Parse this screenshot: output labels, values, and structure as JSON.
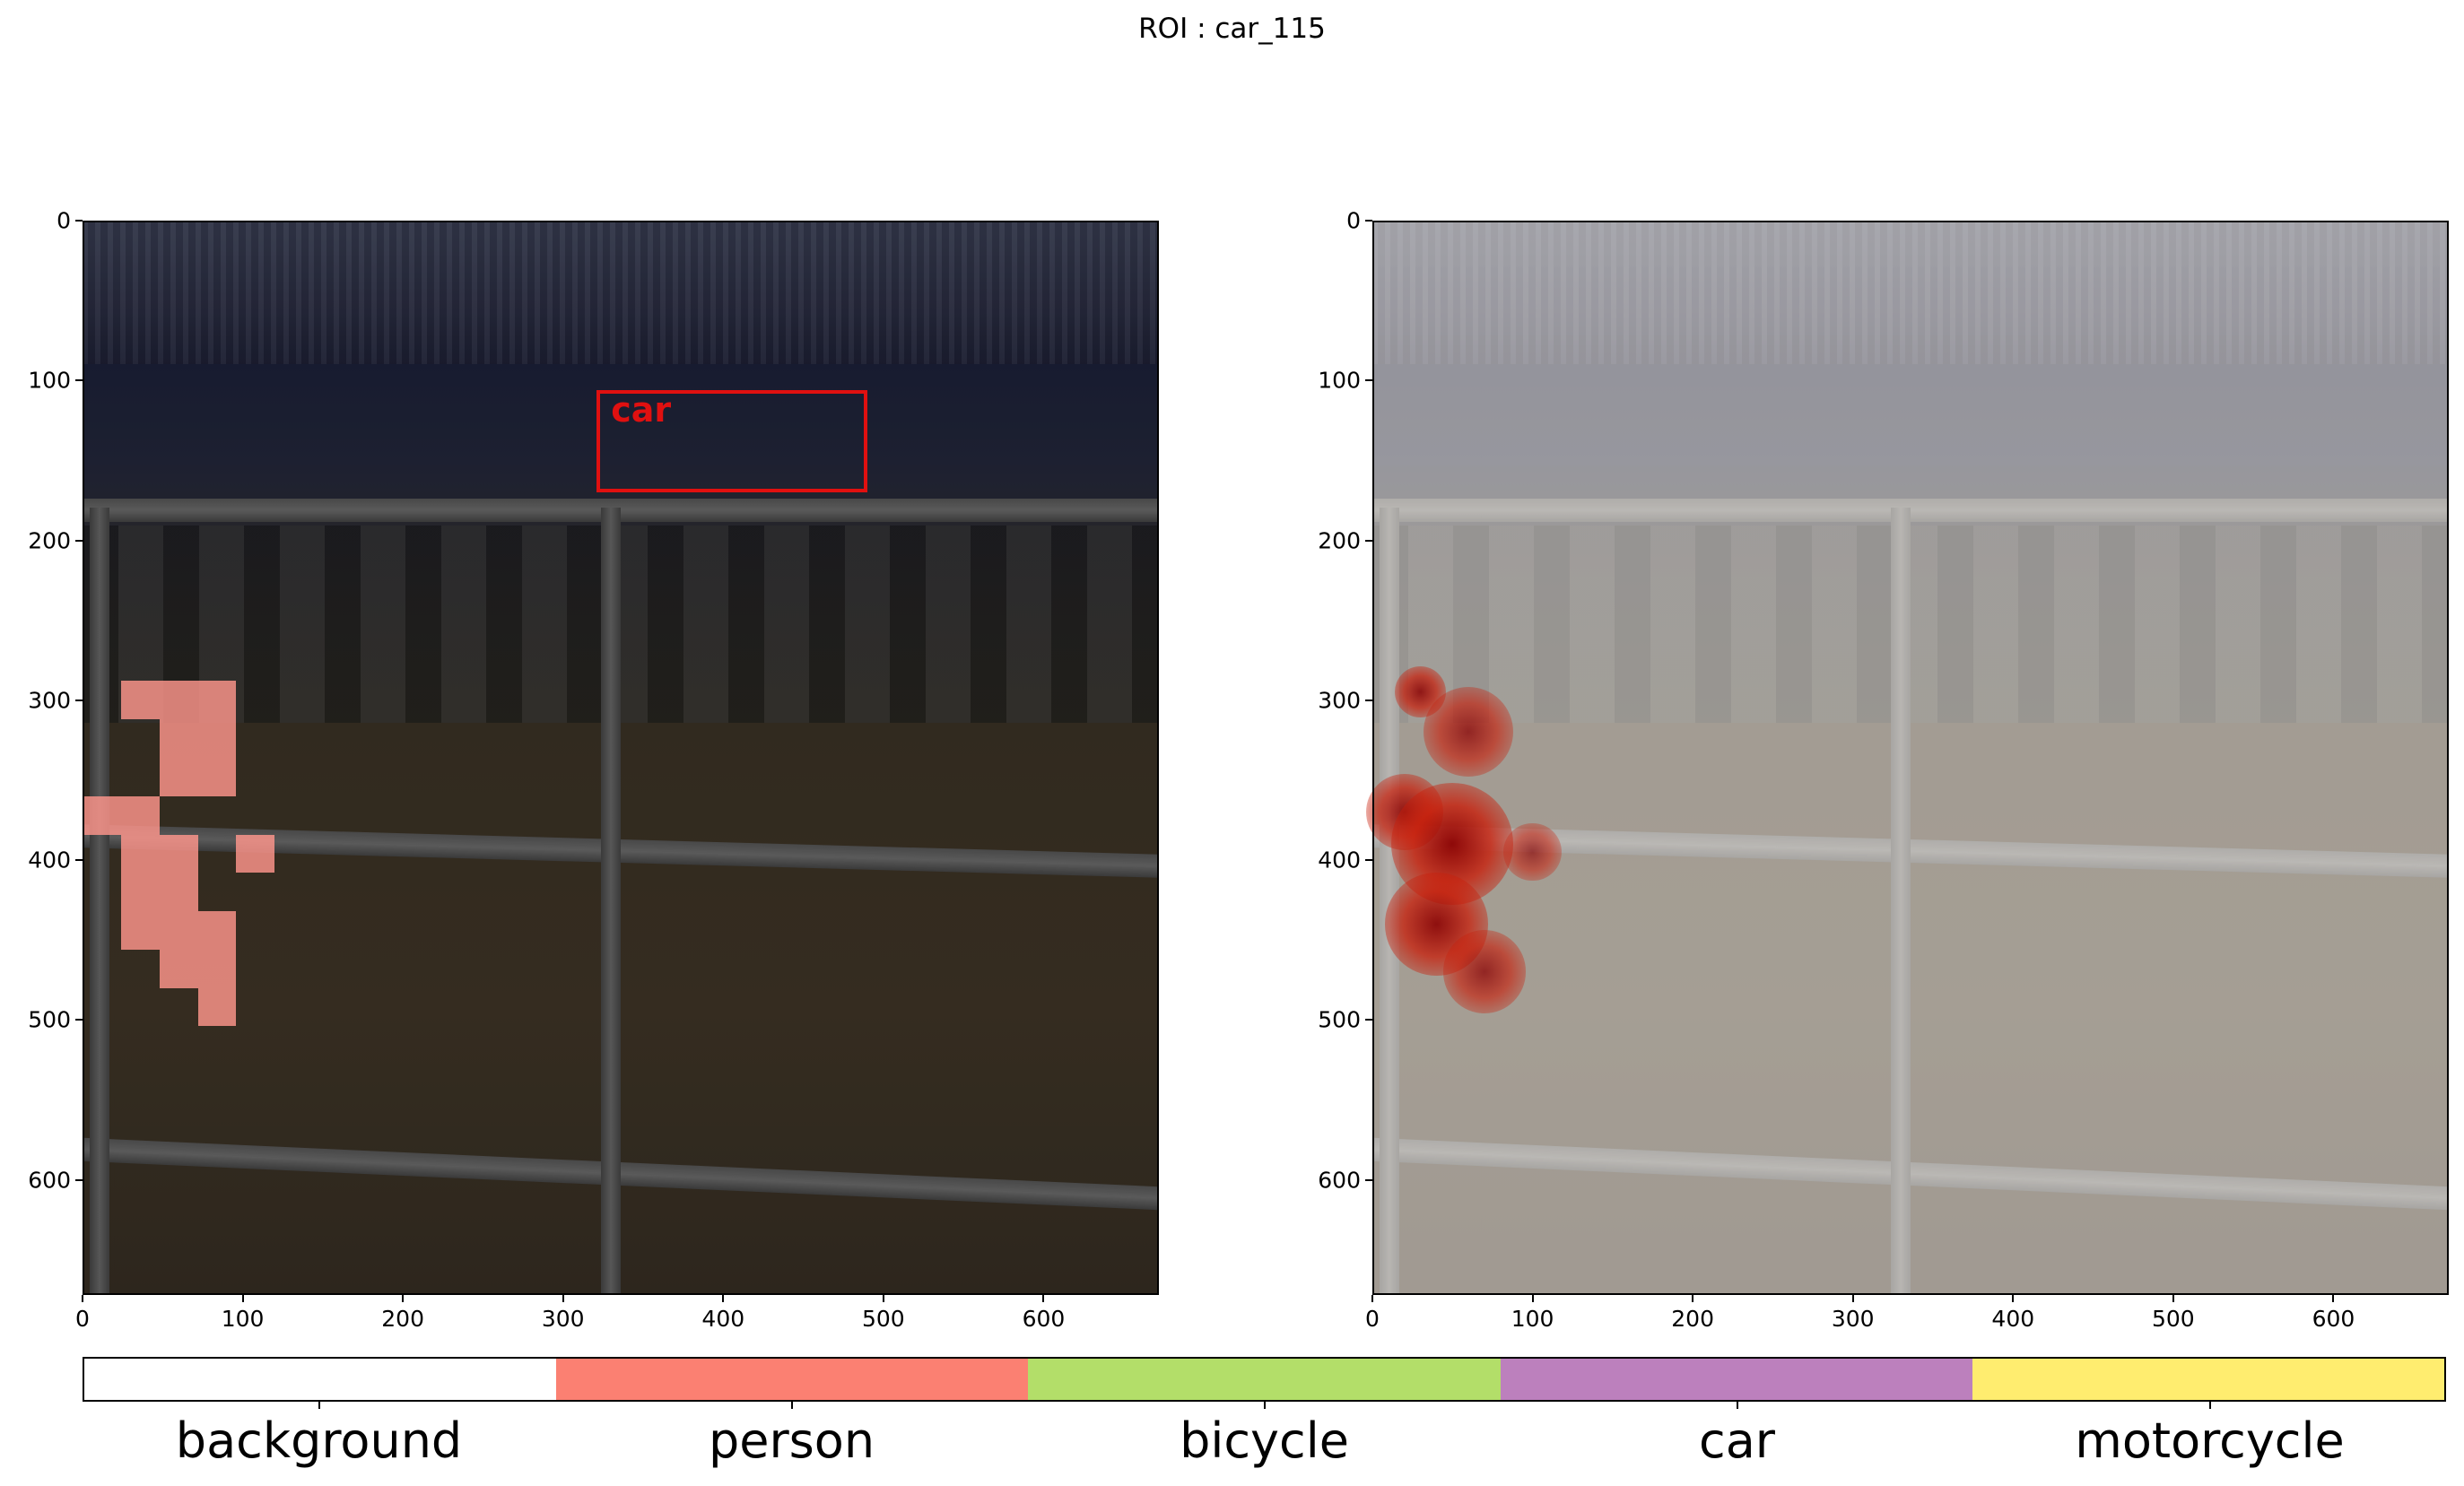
{
  "title": "ROI : car_115",
  "chart_data": [
    {
      "type": "image",
      "panel": "left",
      "xlim": [
        0,
        672
      ],
      "ylim": [
        672,
        0
      ],
      "xticks": [
        0,
        100,
        200,
        300,
        400,
        500,
        600
      ],
      "yticks": [
        0,
        100,
        200,
        300,
        400,
        500,
        600
      ],
      "roi_box": {
        "label": "car",
        "x0": 321,
        "y0": 106,
        "x1": 490,
        "y1": 170
      },
      "attention_cells": [
        {
          "x0": 24,
          "y0": 288,
          "x1": 96,
          "y1": 312
        },
        {
          "x0": 48,
          "y0": 312,
          "x1": 96,
          "y1": 360
        },
        {
          "x0": 0,
          "y0": 360,
          "x1": 48,
          "y1": 384
        },
        {
          "x0": 24,
          "y0": 384,
          "x1": 72,
          "y1": 432
        },
        {
          "x0": 96,
          "y0": 384,
          "x1": 120,
          "y1": 408
        },
        {
          "x0": 24,
          "y0": 432,
          "x1": 96,
          "y1": 456
        },
        {
          "x0": 48,
          "y0": 456,
          "x1": 96,
          "y1": 480
        },
        {
          "x0": 72,
          "y0": 480,
          "x1": 96,
          "y1": 504
        }
      ]
    },
    {
      "type": "heatmap",
      "panel": "right",
      "xlim": [
        0,
        672
      ],
      "ylim": [
        672,
        0
      ],
      "xticks": [
        0,
        100,
        200,
        300,
        400,
        500,
        600
      ],
      "yticks": [
        0,
        100,
        200,
        300,
        400,
        500,
        600
      ],
      "hotspots": [
        {
          "x": 30,
          "y": 295,
          "r": 16,
          "intensity": 0.9
        },
        {
          "x": 60,
          "y": 320,
          "r": 28,
          "intensity": 0.8
        },
        {
          "x": 20,
          "y": 370,
          "r": 24,
          "intensity": 0.9
        },
        {
          "x": 50,
          "y": 390,
          "r": 38,
          "intensity": 1.0
        },
        {
          "x": 100,
          "y": 395,
          "r": 18,
          "intensity": 0.7
        },
        {
          "x": 40,
          "y": 440,
          "r": 32,
          "intensity": 0.95
        },
        {
          "x": 70,
          "y": 470,
          "r": 26,
          "intensity": 0.8
        }
      ]
    }
  ],
  "colorbar": {
    "categories": [
      "background",
      "person",
      "bicycle",
      "car",
      "motorcycle"
    ],
    "colors": [
      "#ffffff",
      "#fb8072",
      "#b3de69",
      "#bc80bd",
      "#ffed6f"
    ]
  }
}
